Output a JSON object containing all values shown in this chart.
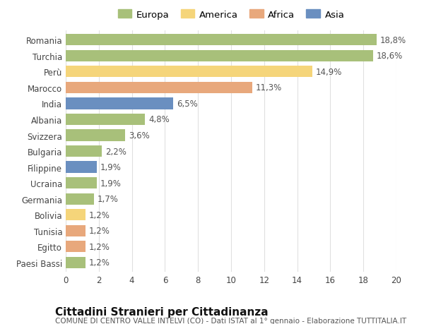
{
  "categories": [
    "Romania",
    "Turchia",
    "Perù",
    "Marocco",
    "India",
    "Albania",
    "Svizzera",
    "Bulgaria",
    "Filippine",
    "Ucraina",
    "Germania",
    "Bolivia",
    "Tunisia",
    "Egitto",
    "Paesi Bassi"
  ],
  "values": [
    18.8,
    18.6,
    14.9,
    11.3,
    6.5,
    4.8,
    3.6,
    2.2,
    1.9,
    1.9,
    1.7,
    1.2,
    1.2,
    1.2,
    1.2
  ],
  "labels": [
    "18,8%",
    "18,6%",
    "14,9%",
    "11,3%",
    "6,5%",
    "4,8%",
    "3,6%",
    "2,2%",
    "1,9%",
    "1,9%",
    "1,7%",
    "1,2%",
    "1,2%",
    "1,2%",
    "1,2%"
  ],
  "continents": [
    "Europa",
    "Europa",
    "America",
    "Africa",
    "Asia",
    "Europa",
    "Europa",
    "Europa",
    "Asia",
    "Europa",
    "Europa",
    "America",
    "Africa",
    "Africa",
    "Europa"
  ],
  "continent_colors": {
    "Europa": "#a8c07a",
    "America": "#f5d57a",
    "Africa": "#e8a87c",
    "Asia": "#6a8fc0"
  },
  "legend_order": [
    "Europa",
    "America",
    "Africa",
    "Asia"
  ],
  "legend_colors": [
    "#a8c07a",
    "#f5d57a",
    "#e8a87c",
    "#6a8fc0"
  ],
  "xlim": [
    0,
    20
  ],
  "xticks": [
    0,
    2,
    4,
    6,
    8,
    10,
    12,
    14,
    16,
    18,
    20
  ],
  "title": "Cittadini Stranieri per Cittadinanza",
  "subtitle": "COMUNE DI CENTRO VALLE INTELVI (CO) - Dati ISTAT al 1° gennaio - Elaborazione TUTTITALIA.IT",
  "background_color": "#ffffff",
  "grid_color": "#e0e0e0",
  "bar_height": 0.72,
  "label_fontsize": 8.5,
  "tick_fontsize": 8.5,
  "title_fontsize": 11,
  "subtitle_fontsize": 7.5
}
